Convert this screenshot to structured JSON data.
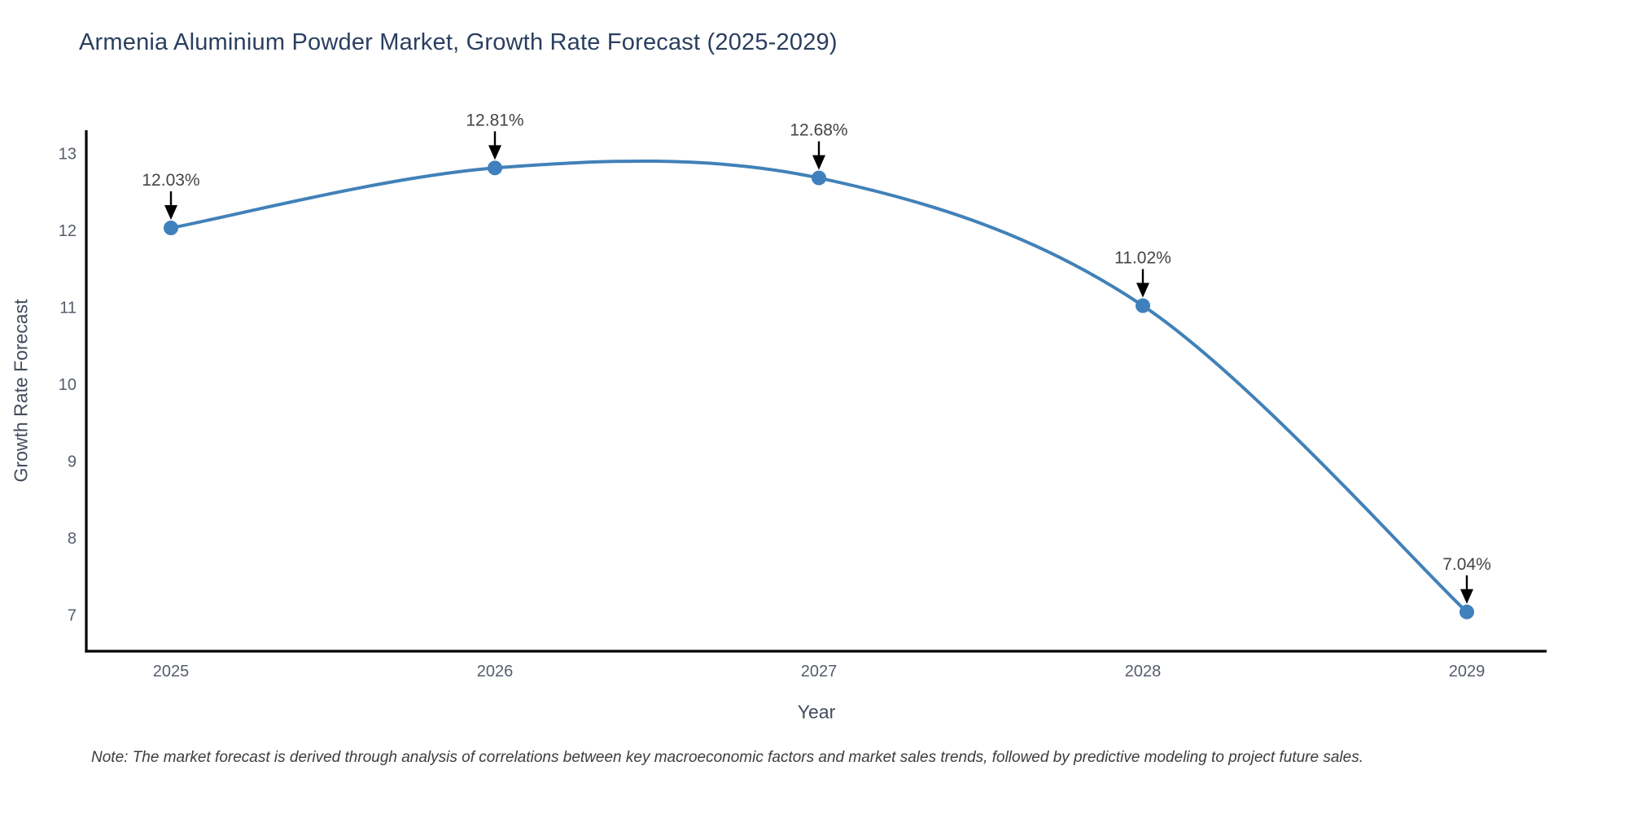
{
  "title": "Armenia Aluminium Powder Market, Growth Rate Forecast (2025-2029)",
  "note": "Note: The market forecast is derived through analysis of correlations between key macroeconomic factors and market sales trends, followed by predictive modeling to project future sales.",
  "chart_data": {
    "type": "line",
    "title": "Armenia Aluminium Powder Market, Growth Rate Forecast (2025-2029)",
    "xlabel": "Year",
    "ylabel": "Growth Rate Forecast",
    "categories": [
      "2025",
      "2026",
      "2027",
      "2028",
      "2029"
    ],
    "values": [
      12.03,
      12.81,
      12.68,
      11.02,
      7.04
    ],
    "point_labels": [
      "12.03%",
      "12.81%",
      "12.68%",
      "11.02%",
      "7.04%"
    ],
    "y_ticks": [
      7,
      8,
      9,
      10,
      11,
      12,
      13
    ],
    "ylim": [
      6.53,
      13.3
    ],
    "line_shape": "spline",
    "grid": false,
    "legend": "none",
    "annotation_style": "black-down-arrow",
    "colors": {
      "line": "#4181b8",
      "marker": "#3f80bd",
      "axis_line": "#000000",
      "annotation_text": "#444444",
      "annotation_arrow": "#000000",
      "tick_text": "#555d6b",
      "title_text": "#2a3f5f",
      "axis_title_text": "#444c5c",
      "note_text": "#3d3d3d",
      "background": "#ffffff"
    }
  }
}
